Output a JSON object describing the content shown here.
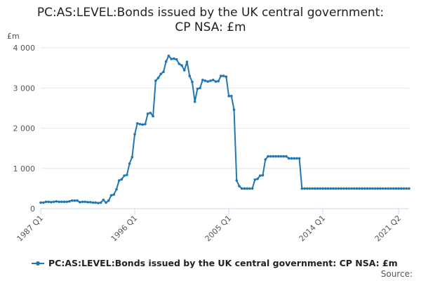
{
  "chart_data": {
    "type": "line",
    "title_lines": [
      "PC:AS:LEVEL:Bonds issued by the UK central government:",
      "CP NSA: £m"
    ],
    "ylabel": "£m",
    "ylim": [
      0,
      4000
    ],
    "yticks": [
      0,
      1000,
      2000,
      3000,
      4000
    ],
    "ytick_labels": [
      "0",
      "1 000",
      "2 000",
      "3 000",
      "4 000"
    ],
    "xticks": [
      {
        "label": "1987 Q1",
        "index": 0
      },
      {
        "label": "1996 Q1",
        "index": 36
      },
      {
        "label": "2005 Q1",
        "index": 72
      },
      {
        "label": "2014 Q1",
        "index": 108
      },
      {
        "label": "2021 Q2",
        "index": 137
      }
    ],
    "grid": true,
    "legend_position": "bottom",
    "series": [
      {
        "name": "PC:AS:LEVEL:Bonds issued by the UK central government: CP NSA: £m",
        "color": "#1F77B4",
        "start_period": "1987 Q1",
        "end_period": "2021 Q2",
        "values": [
          150,
          150,
          170,
          170,
          160,
          170,
          180,
          170,
          170,
          170,
          170,
          180,
          200,
          200,
          200,
          160,
          170,
          170,
          160,
          160,
          150,
          150,
          140,
          150,
          220,
          150,
          200,
          330,
          350,
          480,
          700,
          730,
          820,
          840,
          1120,
          1280,
          1850,
          2120,
          2100,
          2090,
          2100,
          2360,
          2380,
          2300,
          3180,
          3250,
          3350,
          3400,
          3660,
          3800,
          3720,
          3730,
          3710,
          3600,
          3560,
          3440,
          3650,
          3300,
          3150,
          2660,
          2980,
          3000,
          3200,
          3180,
          3160,
          3180,
          3200,
          3160,
          3170,
          3300,
          3300,
          3280,
          2800,
          2800,
          2460,
          700,
          560,
          500,
          500,
          500,
          500,
          500,
          720,
          740,
          820,
          830,
          1220,
          1300,
          1300,
          1300,
          1300,
          1300,
          1300,
          1300,
          1300,
          1250,
          1250,
          1250,
          1250,
          1250,
          500,
          500,
          500,
          500,
          500,
          500,
          500,
          500,
          500,
          500,
          500,
          500,
          500,
          500,
          500,
          500,
          500,
          500,
          500,
          500,
          500,
          500,
          500,
          500,
          500,
          500,
          500,
          500,
          500,
          500,
          500,
          500,
          500,
          500,
          500,
          500,
          500,
          500,
          500,
          500,
          500,
          500
        ]
      }
    ]
  },
  "source_label": "Source:"
}
